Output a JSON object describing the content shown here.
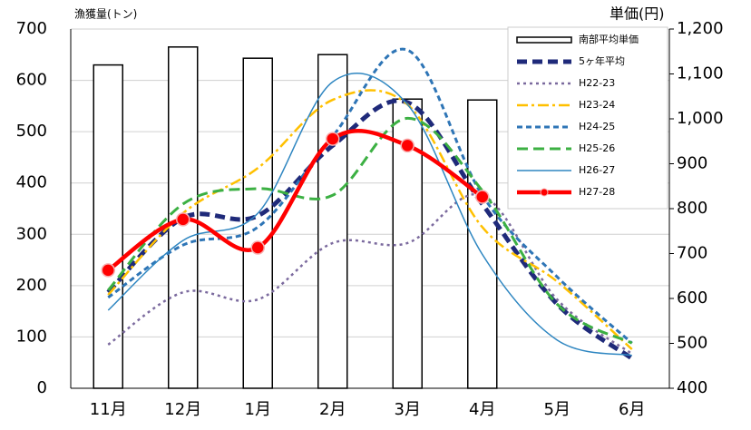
{
  "chart_data": {
    "type": "combo",
    "y_label": "漁獲量(トン)",
    "y2_label": "単価(円)",
    "categories": [
      "11月",
      "12月",
      "1月",
      "2月",
      "3月",
      "4月",
      "5月",
      "6月"
    ],
    "ylim": [
      0,
      700
    ],
    "yticks": [
      0,
      100,
      200,
      300,
      400,
      500,
      600,
      700
    ],
    "y2lim": [
      400,
      1200
    ],
    "y2ticks": [
      400,
      500,
      600,
      700,
      800,
      900,
      {
        "value": 1000,
        "label": "1,000"
      },
      {
        "value": 1100,
        "label": "1,100"
      },
      {
        "value": 1200,
        "label": "1,200"
      }
    ],
    "grid": true,
    "legend": "upper right",
    "series": [
      {
        "name": "南部平均単価",
        "kind": "bar",
        "axis": "y2",
        "color": "#000000",
        "values": [
          1120,
          1160,
          1135,
          1143,
          1044,
          1042,
          null,
          null
        ]
      },
      {
        "name": "5ヶ年平均",
        "kind": "line",
        "color": "#1f2a7a",
        "style": "dash",
        "values": [
          187,
          332,
          336,
          473,
          557,
          359,
          164,
          58
        ]
      },
      {
        "name": "H22-23",
        "kind": "line",
        "color": "#7b6a9e",
        "style": "dot",
        "values": [
          85,
          187,
          173,
          283,
          283,
          376,
          173,
          67
        ]
      },
      {
        "name": "H23-24",
        "kind": "line",
        "color": "#ffc000",
        "style": "dashdot",
        "values": [
          182,
          341,
          429,
          562,
          553,
          314,
          208,
          76
        ]
      },
      {
        "name": "H24-25",
        "kind": "line",
        "color": "#2e75b6",
        "style": "shortdash",
        "values": [
          177,
          279,
          314,
          491,
          659,
          376,
          217,
          88
        ]
      },
      {
        "name": "H25-26",
        "kind": "line",
        "color": "#3cb043",
        "style": "longdash",
        "values": [
          191,
          359,
          389,
          376,
          526,
          385,
          164,
          88
        ]
      },
      {
        "name": "H26-27",
        "kind": "line",
        "color": "#2e86c1",
        "style": "solid",
        "values": [
          152,
          288,
          341,
          597,
          553,
          261,
          94,
          64
        ]
      },
      {
        "name": "H27-28",
        "kind": "line",
        "color": "#ff0000",
        "style": "marker",
        "values": [
          230,
          329,
          274,
          486,
          473,
          373,
          null,
          null
        ]
      }
    ]
  }
}
